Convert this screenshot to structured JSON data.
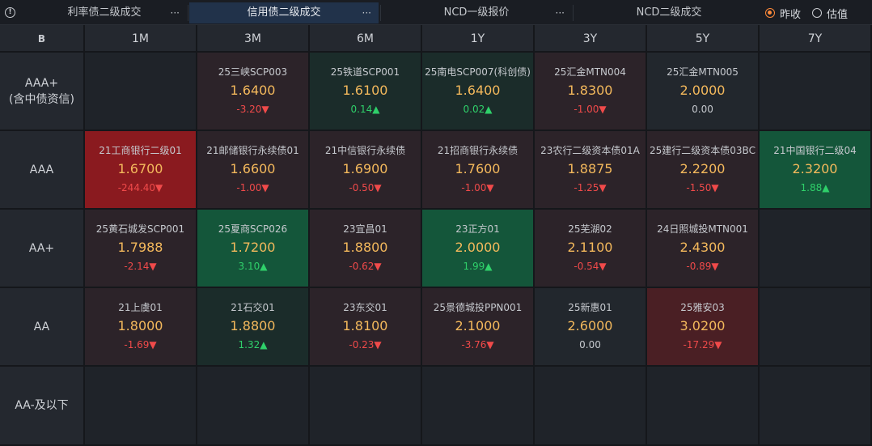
{
  "tabs": [
    {
      "label": "利率债二级成交",
      "more": "···",
      "active": false
    },
    {
      "label": "信用债二级成交",
      "more": "···",
      "active": true
    },
    {
      "label": "NCD一级报价",
      "more": "···",
      "active": false
    },
    {
      "label": "NCD二级成交",
      "more": "",
      "active": false
    }
  ],
  "info_icon": "info-icon",
  "radios": [
    {
      "label": "昨收",
      "checked": true
    },
    {
      "label": "估值",
      "checked": false
    }
  ],
  "corner_label": "B",
  "columns": [
    "1M",
    "3M",
    "6M",
    "1Y",
    "3Y",
    "5Y",
    "7Y"
  ],
  "rows": [
    {
      "label": "AAA+\n(含中债资信)",
      "cells": [
        null,
        {
          "name": "25三峡SCP003",
          "yield": "1.6400",
          "change": "-3.20▼",
          "dir": "down",
          "bg": "redlight"
        },
        {
          "name": "25铁道SCP001",
          "yield": "1.6100",
          "change": "0.14▲",
          "dir": "up",
          "bg": "greenlight"
        },
        {
          "name": "25南电SCP007(科创债)",
          "yield": "1.6400",
          "change": "0.02▲",
          "dir": "up",
          "bg": "greenlight"
        },
        {
          "name": "25汇金MTN004",
          "yield": "1.8300",
          "change": "-1.00▼",
          "dir": "down",
          "bg": "redlight"
        },
        {
          "name": "25汇金MTN005",
          "yield": "2.0000",
          "change": "0.00",
          "dir": "flat",
          "bg": "neutral"
        },
        null
      ]
    },
    {
      "label": "AAA",
      "cells": [
        {
          "name": "21工商银行二级01",
          "yield": "1.6700",
          "change": "-244.40▼",
          "dir": "down",
          "bg": "redstrong"
        },
        {
          "name": "21邮储银行永续债01",
          "yield": "1.6600",
          "change": "-1.00▼",
          "dir": "down",
          "bg": "redlight"
        },
        {
          "name": "21中信银行永续债",
          "yield": "1.6900",
          "change": "-0.50▼",
          "dir": "down",
          "bg": "redlight"
        },
        {
          "name": "21招商银行永续债",
          "yield": "1.7600",
          "change": "-1.00▼",
          "dir": "down",
          "bg": "redlight"
        },
        {
          "name": "23农行二级资本债01A",
          "yield": "1.8875",
          "change": "-1.25▼",
          "dir": "down",
          "bg": "redlight"
        },
        {
          "name": "25建行二级资本债03BC",
          "yield": "2.2200",
          "change": "-1.50▼",
          "dir": "down",
          "bg": "redlight"
        },
        {
          "name": "21中国银行二级04",
          "yield": "2.3200",
          "change": "1.88▲",
          "dir": "up",
          "bg": "greenmid"
        }
      ]
    },
    {
      "label": "AA+",
      "cells": [
        {
          "name": "25黄石城发SCP001",
          "yield": "1.7988",
          "change": "-2.14▼",
          "dir": "down",
          "bg": "redlight"
        },
        {
          "name": "25夏商SCP026",
          "yield": "1.7200",
          "change": "3.10▲",
          "dir": "up",
          "bg": "greenmid"
        },
        {
          "name": "23宜昌01",
          "yield": "1.8800",
          "change": "-0.62▼",
          "dir": "down",
          "bg": "redlight"
        },
        {
          "name": "23正方01",
          "yield": "2.0000",
          "change": "1.99▲",
          "dir": "up",
          "bg": "greenmid"
        },
        {
          "name": "25芜湖02",
          "yield": "2.1100",
          "change": "-0.54▼",
          "dir": "down",
          "bg": "redlight"
        },
        {
          "name": "24日照城投MTN001",
          "yield": "2.4300",
          "change": "-0.89▼",
          "dir": "down",
          "bg": "redlight"
        },
        null
      ]
    },
    {
      "label": "AA",
      "cells": [
        {
          "name": "21上虞01",
          "yield": "1.8000",
          "change": "-1.69▼",
          "dir": "down",
          "bg": "redlight"
        },
        {
          "name": "21石交01",
          "yield": "1.8800",
          "change": "1.32▲",
          "dir": "up",
          "bg": "greenlight"
        },
        {
          "name": "23东交01",
          "yield": "1.8100",
          "change": "-0.23▼",
          "dir": "down",
          "bg": "redlight"
        },
        {
          "name": "25景德城投PPN001",
          "yield": "2.1000",
          "change": "-3.76▼",
          "dir": "down",
          "bg": "redlight"
        },
        {
          "name": "25新惠01",
          "yield": "2.6000",
          "change": "0.00",
          "dir": "flat",
          "bg": "neutral"
        },
        {
          "name": "25雅安03",
          "yield": "3.0200",
          "change": "-17.29▼",
          "dir": "down",
          "bg": "redmid"
        },
        null
      ]
    },
    {
      "label": "AA-及以下",
      "cells": [
        null,
        null,
        null,
        null,
        null,
        null,
        null
      ]
    }
  ],
  "colors": {
    "yield": "#f4b95c",
    "down": "#f04a4a",
    "up": "#2fd06a",
    "radio_checked": "#ff8a3a",
    "active_tab": "#21324a"
  }
}
